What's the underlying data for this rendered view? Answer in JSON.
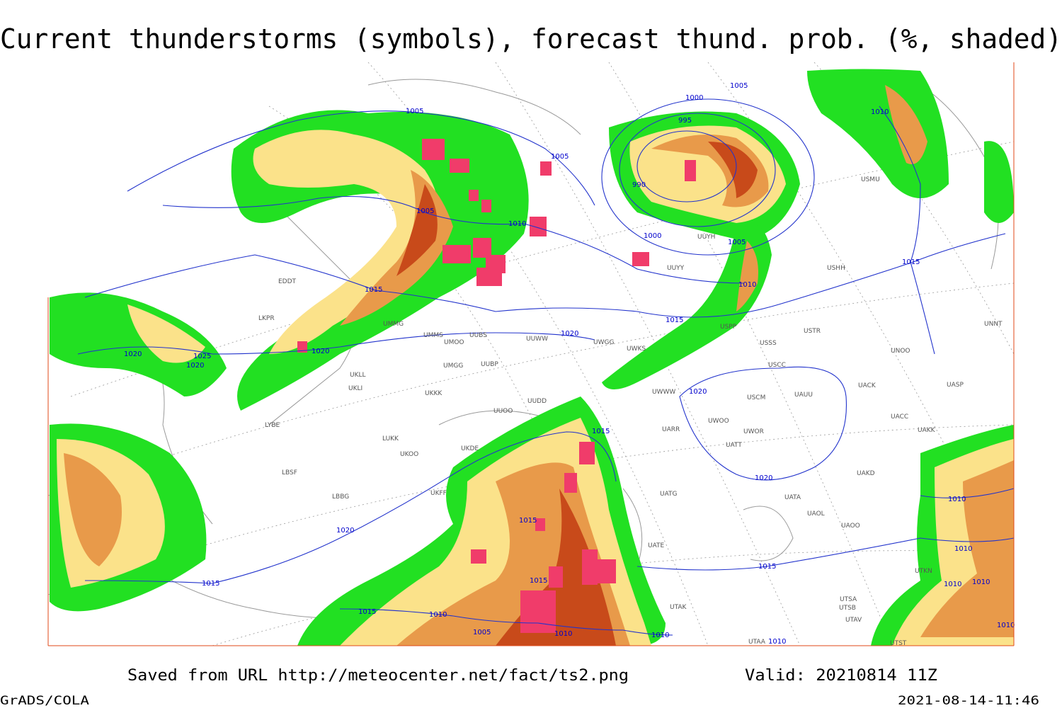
{
  "title": "Current thunderstorms (symbols), forecast thund. prob. (%, shaded)",
  "isobar_labels": [
    "1005",
    "1005",
    "1005",
    "1010",
    "1000",
    "1005",
    "995",
    "990",
    "1000",
    "1005",
    "1010",
    "1015",
    "1015",
    "1020",
    "1020",
    "1020",
    "1025",
    "1020",
    "1020",
    "1015",
    "1020",
    "1010",
    "1015",
    "1010",
    "1015",
    "1020",
    "1010",
    "1015",
    "1015",
    "1010",
    "1010",
    "1015",
    "1015",
    "1010",
    "1005",
    "1010",
    "1010",
    "1010",
    "1010"
  ],
  "stations": [
    "EDDT",
    "LKPR",
    "UMMG",
    "UMMS",
    "UMOO",
    "UUBS",
    "UUWW",
    "UWGG",
    "UWKS",
    "USSS",
    "USTR",
    "USCC",
    "UWWW",
    "USCM",
    "UAUU",
    "UWOO",
    "UWOR",
    "UATT",
    "UARR",
    "UMGG",
    "UUBP",
    "UKLL",
    "UKLI",
    "UKKK",
    "UUOO",
    "UUDD",
    "LYBE",
    "LUKK",
    "UKOO",
    "UKDE",
    "LBSF",
    "LBBG",
    "UKFF",
    "UATG",
    "UATA",
    "UAOL",
    "UAOO",
    "UAKD",
    "UUYY",
    "UUYH",
    "USHH",
    "USMU",
    "USPP",
    "UACC",
    "UAKK",
    "UASP",
    "UNOO",
    "UNNT",
    "UACK",
    "UTAK",
    "UTSA",
    "UTSB",
    "UTAV",
    "UTAA",
    "UTKN",
    "UTST",
    "UATE"
  ],
  "footer": {
    "saved": "Saved from URL http://meteocenter.net/fact/ts2.png",
    "valid": "Valid: 20210814 11Z",
    "software": "GrADS/COLA",
    "timestamp": "2021-08-14-11:46"
  }
}
